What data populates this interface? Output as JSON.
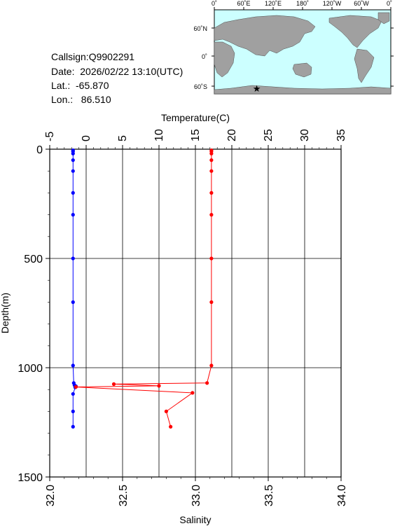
{
  "station": {
    "callsign": "Callsign:Q9902291",
    "date": "Date:  2026/02/22 13:10(UTC)",
    "lat": "Lat.:  -65.870",
    "lon": "Lon.:   86.510"
  },
  "map": {
    "top_labels": [
      "0˚",
      "60˚E",
      "120˚E",
      "180˚",
      "120˚W",
      "60˚W",
      "0˚"
    ],
    "left_labels": [
      "60˚N",
      "0˚",
      "60˚S"
    ],
    "ocean_color": "#ccffff",
    "land_color": "#a0a0a0",
    "marker_color": "#ff0000",
    "marker": {
      "lon": 86.51,
      "lat": -65.87
    }
  },
  "chart_data": {
    "type": "line",
    "temperature_axis": {
      "label": "Temperature(C)",
      "range": [
        -5,
        35
      ],
      "ticks": [
        "-5",
        "0",
        "5",
        "10",
        "15",
        "20",
        "25",
        "30",
        "35"
      ]
    },
    "salinity_axis": {
      "label": "Salinity",
      "range": [
        32.0,
        34.0
      ],
      "ticks": [
        "32.0",
        "32.5",
        "33.0",
        "33.5",
        "34.0"
      ]
    },
    "depth_axis": {
      "label": "Depth(m)",
      "range": [
        0,
        1500
      ],
      "ticks": [
        "0",
        "500",
        "1000",
        "1500"
      ]
    },
    "grid": true,
    "series": [
      {
        "kind": "temperature",
        "color": "#0000ff",
        "points": [
          {
            "t": -1.8,
            "d": 5
          },
          {
            "t": -1.8,
            "d": 10
          },
          {
            "t": -1.8,
            "d": 20
          },
          {
            "t": -1.8,
            "d": 50
          },
          {
            "t": -1.8,
            "d": 100
          },
          {
            "t": -1.8,
            "d": 200
          },
          {
            "t": -1.8,
            "d": 300
          },
          {
            "t": -1.8,
            "d": 500
          },
          {
            "t": -1.8,
            "d": 700
          },
          {
            "t": -1.8,
            "d": 990
          },
          {
            "t": -1.7,
            "d": 1070
          },
          {
            "t": -1.6,
            "d": 1080
          },
          {
            "t": -1.4,
            "d": 1085
          },
          {
            "t": -1.5,
            "d": 1090
          },
          {
            "t": -1.8,
            "d": 1120
          },
          {
            "t": -1.8,
            "d": 1200
          },
          {
            "t": -1.8,
            "d": 1270
          }
        ]
      },
      {
        "kind": "salinity",
        "color": "#ff0000",
        "points": [
          {
            "s": 33.11,
            "d": 5
          },
          {
            "s": 33.11,
            "d": 10
          },
          {
            "s": 33.11,
            "d": 20
          },
          {
            "s": 33.11,
            "d": 50
          },
          {
            "s": 33.11,
            "d": 100
          },
          {
            "s": 33.11,
            "d": 200
          },
          {
            "s": 33.11,
            "d": 300
          },
          {
            "s": 33.11,
            "d": 500
          },
          {
            "s": 33.11,
            "d": 700
          },
          {
            "s": 33.11,
            "d": 990
          },
          {
            "s": 33.08,
            "d": 1070
          },
          {
            "s": 32.44,
            "d": 1075
          },
          {
            "s": 32.75,
            "d": 1083
          },
          {
            "s": 32.18,
            "d": 1088
          },
          {
            "s": 32.98,
            "d": 1115
          },
          {
            "s": 32.8,
            "d": 1200
          },
          {
            "s": 32.83,
            "d": 1270
          }
        ]
      }
    ]
  }
}
